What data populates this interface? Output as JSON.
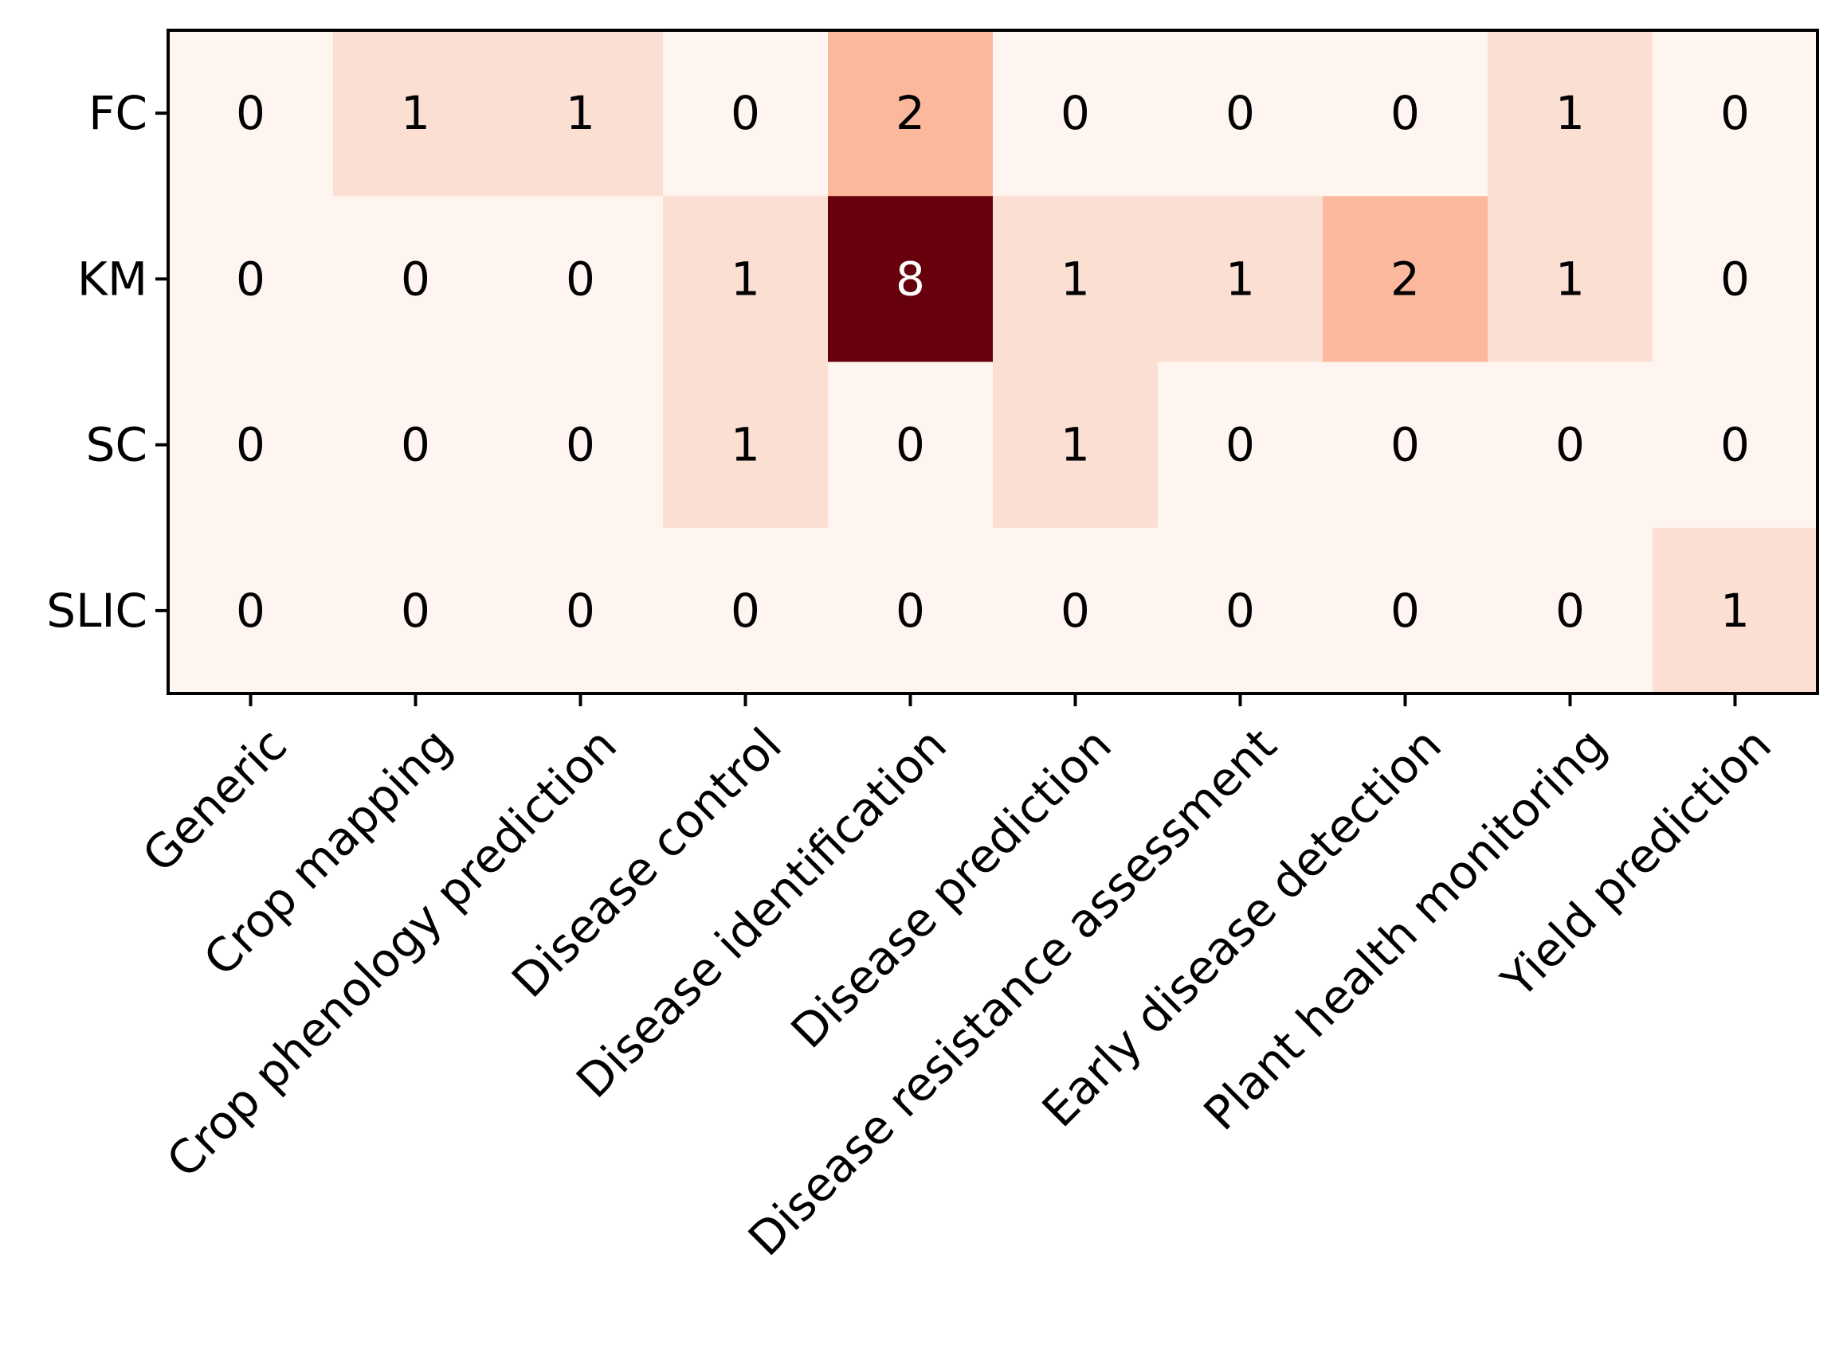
{
  "chart_data": {
    "type": "heatmap",
    "title": "",
    "xlabel": "",
    "ylabel": "",
    "x_categories": [
      "Generic",
      "Crop mapping",
      "Crop phenology prediction",
      "Disease control",
      "Disease identification",
      "Disease prediction",
      "Disease resistance assessment",
      "Early disease detection",
      "Plant health monitoring",
      "Yield prediction"
    ],
    "y_categories": [
      "FC",
      "KM",
      "SC",
      "SLIC"
    ],
    "values": [
      [
        0,
        1,
        1,
        0,
        2,
        0,
        0,
        0,
        1,
        0
      ],
      [
        0,
        0,
        0,
        1,
        8,
        1,
        1,
        2,
        1,
        0
      ],
      [
        0,
        0,
        0,
        1,
        0,
        1,
        0,
        0,
        0,
        0
      ],
      [
        0,
        0,
        0,
        0,
        0,
        0,
        0,
        0,
        0,
        1
      ]
    ],
    "value_range": [
      0,
      8
    ],
    "colormap": "Reds",
    "colors": {
      "0": "#fff5f0",
      "1": "#fcdfd3",
      "2": "#fbb89d",
      "8": "#67000d"
    },
    "grid": false,
    "legend": "none"
  }
}
